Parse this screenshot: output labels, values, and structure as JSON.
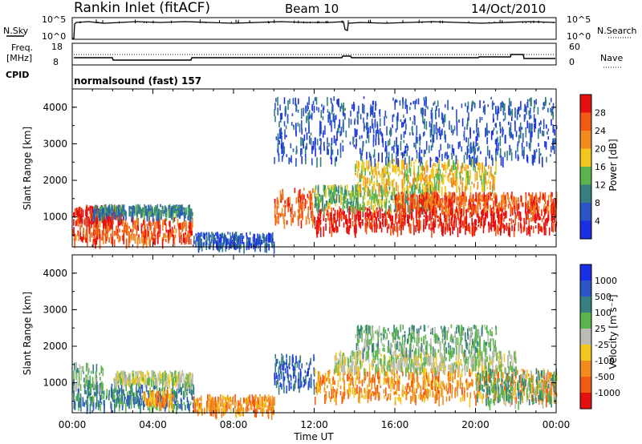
{
  "header": {
    "station": "Rankin Inlet (fitACF)",
    "beam": "Beam 10",
    "date": "14/Oct/2010"
  },
  "top_panels": {
    "nsky_label": "N.Sky",
    "nsky_ticks": [
      "10^5",
      "10^0"
    ],
    "nsearch_label": "N.Search",
    "nsearch_ticks": [
      "10^5",
      "10^0"
    ],
    "freq_label": "Freq.",
    "freq_unit": "[MHz]",
    "freq_ticks": [
      "18",
      "8"
    ],
    "nave_label": "Nave",
    "nave_ticks": [
      "60",
      "0"
    ],
    "cpid_label": "CPID",
    "cpid_value": "normalsound (fast) 157"
  },
  "colors": {
    "power_scale": [
      "#1a2ee6",
      "#2a54c8",
      "#357f80",
      "#5ab54a",
      "#f2c81e",
      "#f28a1e",
      "#f25a14",
      "#e60f0f"
    ],
    "velocity_scale": [
      "#1a2ee6",
      "#2a54c8",
      "#357f80",
      "#5ab54a",
      "#bcbcb4",
      "#f2c81e",
      "#f28a1e",
      "#f25a14",
      "#e60f0f"
    ]
  },
  "chart_data": [
    {
      "type": "heatmap",
      "name": "power",
      "ylabel": "Slant Range [km]",
      "ylim": [
        180,
        4500
      ],
      "y_ticks": [
        "4000",
        "3000",
        "2000",
        "1000"
      ],
      "y_tick_values": [
        4000,
        3000,
        2000,
        1000
      ],
      "colorbar_label": "Power [dB]",
      "colorbar_ticks": [
        "28",
        "24",
        "20",
        "16",
        "12",
        "8",
        "4"
      ],
      "regions": [
        {
          "t0": 0.0,
          "t1": 6.0,
          "r0": 380,
          "r1": 1000,
          "level": 6
        },
        {
          "t0": 0.0,
          "t1": 2.5,
          "r0": 900,
          "r1": 1350,
          "level": 7
        },
        {
          "t0": 1.0,
          "t1": 6.0,
          "r0": 1100,
          "r1": 1350,
          "level": 2
        },
        {
          "t0": 6.0,
          "t1": 10.0,
          "r0": 250,
          "r1": 600,
          "level": 1
        },
        {
          "t0": 10.0,
          "t1": 12.0,
          "r0": 900,
          "r1": 1800,
          "level": 6
        },
        {
          "t0": 12.0,
          "t1": 17.0,
          "r0": 700,
          "r1": 1300,
          "level": 7
        },
        {
          "t0": 12.0,
          "t1": 18.0,
          "r0": 1300,
          "r1": 1900,
          "level": 3
        },
        {
          "t0": 14.0,
          "t1": 21.0,
          "r0": 1800,
          "r1": 2600,
          "level": 4
        },
        {
          "t0": 17.0,
          "t1": 24.0,
          "r0": 700,
          "r1": 1300,
          "level": 7
        },
        {
          "t0": 16.0,
          "t1": 24.0,
          "r0": 1300,
          "r1": 1700,
          "level": 6
        },
        {
          "t0": 10.0,
          "t1": 24.0,
          "r0": 2600,
          "r1": 4300,
          "level": 1
        }
      ]
    },
    {
      "type": "heatmap",
      "name": "velocity",
      "ylabel": "Slant Range [km]",
      "xlabel": "Time UT",
      "ylim": [
        180,
        4500
      ],
      "y_ticks": [
        "4000",
        "3000",
        "2000",
        "1000"
      ],
      "y_tick_values": [
        4000,
        3000,
        2000,
        1000
      ],
      "x_ticks": [
        "00:00",
        "04:00",
        "08:00",
        "12:00",
        "16:00",
        "20:00",
        "00:00"
      ],
      "x_tick_values": [
        0,
        4,
        8,
        12,
        16,
        20,
        24
      ],
      "colorbar_label": "Velocity [m s⁻¹]",
      "colorbar_ticks": [
        "1000",
        "500",
        "100",
        "25",
        "-25",
        "-100",
        "-500",
        "-1000"
      ],
      "regions": [
        {
          "t0": 0.0,
          "t1": 6.0,
          "r0": 400,
          "r1": 1000,
          "level": 2
        },
        {
          "t0": 0.0,
          "t1": 1.5,
          "r0": 900,
          "r1": 1600,
          "level": 3
        },
        {
          "t0": 2.0,
          "t1": 6.0,
          "r0": 1050,
          "r1": 1350,
          "level": 4
        },
        {
          "t0": 3.5,
          "t1": 5.0,
          "r0": 450,
          "r1": 850,
          "level": 6
        },
        {
          "t0": 6.0,
          "t1": 10.0,
          "r0": 250,
          "r1": 700,
          "level": 6
        },
        {
          "t0": 10.0,
          "t1": 12.0,
          "r0": 900,
          "r1": 1800,
          "level": 1
        },
        {
          "t0": 12.0,
          "t1": 24.0,
          "r0": 600,
          "r1": 1400,
          "level": 6
        },
        {
          "t0": 13.0,
          "t1": 22.0,
          "r0": 1400,
          "r1": 1900,
          "level": 4
        },
        {
          "t0": 14.0,
          "t1": 21.0,
          "r0": 1900,
          "r1": 2600,
          "level": 3
        },
        {
          "t0": 20.0,
          "t1": 24.0,
          "r0": 500,
          "r1": 1400,
          "level": 3
        }
      ]
    }
  ]
}
